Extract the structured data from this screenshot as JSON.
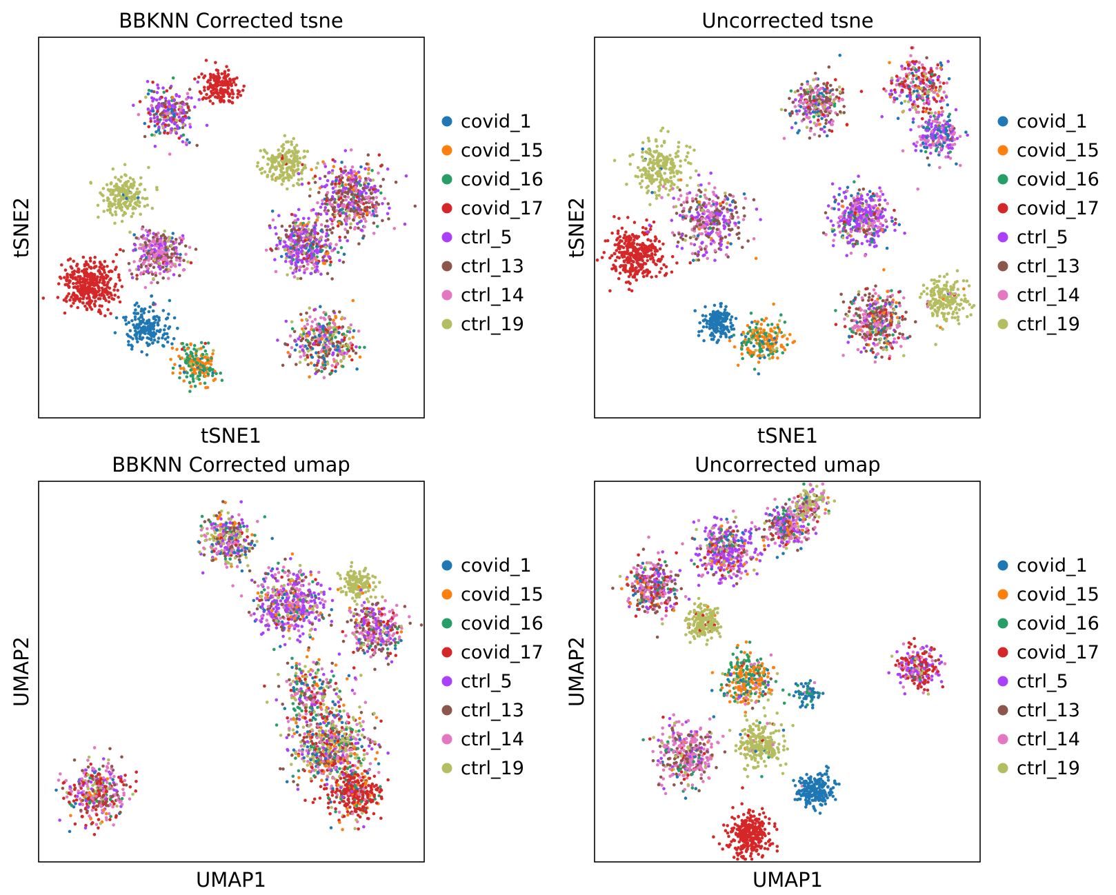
{
  "figure": {
    "background": "#ffffff"
  },
  "legend": [
    {
      "label": "covid_1",
      "color": "#1f77b4"
    },
    {
      "label": "covid_15",
      "color": "#ff7f0e"
    },
    {
      "label": "covid_16",
      "color": "#279e68"
    },
    {
      "label": "covid_17",
      "color": "#d62728"
    },
    {
      "label": "ctrl_5",
      "color": "#aa40fc"
    },
    {
      "label": "ctrl_13",
      "color": "#8c564b"
    },
    {
      "label": "ctrl_14",
      "color": "#e377c2"
    },
    {
      "label": "ctrl_19",
      "color": "#b5bd61"
    }
  ],
  "chart_data": [
    {
      "type": "scatter",
      "title": "BBKNN Corrected tsne",
      "xlabel": "tSNE1",
      "ylabel": "tSNE2",
      "xlim": [
        0,
        100
      ],
      "ylim": [
        0,
        100
      ],
      "ticks": false,
      "grid": false,
      "legend_position": "right",
      "note": "Clusters approximate the point clouds; x/y are centers in normalized embedding units, r is spread.",
      "clusters": [
        {
          "x": 13,
          "y": 35,
          "r": 6,
          "n": 380,
          "mix": [
            0,
            0,
            0,
            100,
            0,
            0,
            0,
            0
          ]
        },
        {
          "x": 22,
          "y": 58,
          "r": 5,
          "n": 200,
          "mix": [
            2,
            0,
            0,
            0,
            0,
            0,
            0,
            98
          ]
        },
        {
          "x": 34,
          "y": 80,
          "r": 6,
          "n": 260,
          "mix": [
            10,
            4,
            6,
            8,
            34,
            16,
            16,
            6
          ]
        },
        {
          "x": 47,
          "y": 87,
          "r": 4,
          "n": 170,
          "mix": [
            0,
            0,
            0,
            100,
            0,
            0,
            0,
            0
          ]
        },
        {
          "x": 31,
          "y": 43,
          "r": 6,
          "n": 330,
          "mix": [
            2,
            1,
            1,
            1,
            18,
            30,
            42,
            5
          ]
        },
        {
          "x": 28,
          "y": 24,
          "r": 5,
          "n": 190,
          "mix": [
            100,
            0,
            0,
            0,
            0,
            0,
            0,
            0
          ]
        },
        {
          "x": 41,
          "y": 14,
          "r": 5,
          "n": 200,
          "mix": [
            4,
            48,
            42,
            2,
            0,
            0,
            0,
            4
          ]
        },
        {
          "x": 64,
          "y": 67,
          "r": 5,
          "n": 210,
          "mix": [
            0,
            2,
            0,
            2,
            0,
            0,
            0,
            96
          ]
        },
        {
          "x": 81,
          "y": 58,
          "r": 8,
          "n": 450,
          "mix": [
            6,
            5,
            4,
            8,
            24,
            28,
            20,
            5
          ]
        },
        {
          "x": 69,
          "y": 45,
          "r": 7,
          "n": 430,
          "mix": [
            10,
            4,
            6,
            6,
            38,
            14,
            16,
            6
          ]
        },
        {
          "x": 74,
          "y": 20,
          "r": 7,
          "n": 380,
          "mix": [
            10,
            10,
            10,
            8,
            10,
            18,
            16,
            18
          ]
        }
      ]
    },
    {
      "type": "scatter",
      "title": "Uncorrected tsne",
      "xlabel": "tSNE1",
      "ylabel": "tSNE2",
      "xlim": [
        0,
        100
      ],
      "ylim": [
        0,
        100
      ],
      "ticks": false,
      "grid": false,
      "legend_position": "right",
      "note": "Clusters approximate the point clouds; x/y are centers in normalized embedding units, r is spread.",
      "clusters": [
        {
          "x": 11,
          "y": 43,
          "r": 6,
          "n": 340,
          "mix": [
            0,
            0,
            0,
            100,
            0,
            0,
            0,
            0
          ]
        },
        {
          "x": 17,
          "y": 66,
          "r": 6,
          "n": 220,
          "mix": [
            2,
            0,
            0,
            0,
            0,
            0,
            0,
            98
          ]
        },
        {
          "x": 30,
          "y": 52,
          "r": 8,
          "n": 360,
          "mix": [
            4,
            2,
            2,
            2,
            22,
            30,
            34,
            4
          ]
        },
        {
          "x": 32,
          "y": 25,
          "r": 4,
          "n": 170,
          "mix": [
            100,
            0,
            0,
            0,
            0,
            0,
            0,
            0
          ]
        },
        {
          "x": 44,
          "y": 20,
          "r": 5,
          "n": 220,
          "mix": [
            6,
            50,
            34,
            2,
            0,
            0,
            0,
            8
          ]
        },
        {
          "x": 58,
          "y": 82,
          "r": 6,
          "n": 280,
          "mix": [
            12,
            2,
            4,
            4,
            10,
            36,
            22,
            10
          ]
        },
        {
          "x": 69,
          "y": 52,
          "r": 7,
          "n": 380,
          "mix": [
            8,
            2,
            4,
            4,
            44,
            14,
            20,
            4
          ]
        },
        {
          "x": 73,
          "y": 25,
          "r": 7,
          "n": 380,
          "mix": [
            6,
            8,
            6,
            10,
            10,
            30,
            24,
            6
          ]
        },
        {
          "x": 84,
          "y": 87,
          "r": 6,
          "n": 270,
          "mix": [
            6,
            6,
            4,
            30,
            16,
            6,
            22,
            10
          ]
        },
        {
          "x": 89,
          "y": 74,
          "r": 5,
          "n": 230,
          "mix": [
            24,
            2,
            6,
            0,
            36,
            6,
            26,
            0
          ]
        },
        {
          "x": 91,
          "y": 31,
          "r": 5,
          "n": 200,
          "mix": [
            2,
            1,
            0,
            1,
            0,
            0,
            2,
            94
          ]
        }
      ]
    },
    {
      "type": "scatter",
      "title": "BBKNN Corrected umap",
      "xlabel": "UMAP1",
      "ylabel": "UMAP2",
      "xlim": [
        0,
        100
      ],
      "ylim": [
        0,
        100
      ],
      "ticks": false,
      "grid": false,
      "legend_position": "right",
      "note": "Clusters approximate the point clouds; x/y are centers in normalized embedding units, r is spread.",
      "clusters": [
        {
          "x": 15,
          "y": 18,
          "r": 7,
          "n": 360,
          "mix": [
            4,
            4,
            6,
            26,
            10,
            16,
            26,
            8
          ]
        },
        {
          "x": 49,
          "y": 85,
          "r": 6,
          "n": 330,
          "mix": [
            8,
            6,
            6,
            4,
            20,
            16,
            20,
            20
          ]
        },
        {
          "x": 65,
          "y": 68,
          "r": 8,
          "n": 480,
          "mix": [
            6,
            4,
            6,
            4,
            36,
            14,
            24,
            6
          ]
        },
        {
          "x": 83,
          "y": 73,
          "r": 4,
          "n": 150,
          "mix": [
            0,
            2,
            0,
            2,
            0,
            0,
            0,
            96
          ]
        },
        {
          "x": 87,
          "y": 61,
          "r": 6,
          "n": 300,
          "mix": [
            4,
            4,
            4,
            10,
            22,
            24,
            26,
            6
          ]
        },
        {
          "x": 71,
          "y": 45,
          "r": 8,
          "n": 260,
          "mix": [
            10,
            12,
            12,
            8,
            12,
            10,
            20,
            16
          ]
        },
        {
          "x": 76,
          "y": 30,
          "r": 9,
          "n": 620,
          "mix": [
            10,
            10,
            12,
            16,
            8,
            10,
            14,
            20
          ]
        },
        {
          "x": 82,
          "y": 18,
          "r": 6,
          "n": 330,
          "mix": [
            4,
            8,
            6,
            64,
            4,
            4,
            6,
            4
          ]
        }
      ]
    },
    {
      "type": "scatter",
      "title": "Uncorrected umap",
      "xlabel": "UMAP1",
      "ylabel": "UMAP2",
      "xlim": [
        0,
        100
      ],
      "ylim": [
        0,
        100
      ],
      "ticks": false,
      "grid": false,
      "legend_position": "right",
      "note": "Clusters approximate the point clouds; x/y are centers in normalized embedding units, r is spread.",
      "clusters": [
        {
          "x": 15,
          "y": 72,
          "r": 6,
          "n": 330,
          "mix": [
            4,
            6,
            4,
            12,
            16,
            26,
            28,
            4
          ]
        },
        {
          "x": 34,
          "y": 82,
          "r": 7,
          "n": 380,
          "mix": [
            6,
            6,
            4,
            8,
            44,
            10,
            18,
            4
          ]
        },
        {
          "x": 50,
          "y": 88,
          "r": 5,
          "n": 280,
          "mix": [
            10,
            4,
            4,
            4,
            18,
            24,
            28,
            8
          ]
        },
        {
          "x": 56,
          "y": 94,
          "r": 4,
          "n": 150,
          "mix": [
            6,
            4,
            2,
            4,
            6,
            10,
            28,
            40
          ]
        },
        {
          "x": 28,
          "y": 63,
          "r": 4,
          "n": 200,
          "mix": [
            0,
            2,
            0,
            2,
            0,
            0,
            0,
            96
          ]
        },
        {
          "x": 40,
          "y": 48,
          "r": 6,
          "n": 300,
          "mix": [
            6,
            44,
            30,
            2,
            2,
            2,
            8,
            6
          ]
        },
        {
          "x": 55,
          "y": 44,
          "r": 3,
          "n": 60,
          "mix": [
            60,
            0,
            30,
            0,
            0,
            0,
            10,
            0
          ]
        },
        {
          "x": 84,
          "y": 51,
          "r": 5,
          "n": 240,
          "mix": [
            2,
            0,
            2,
            36,
            28,
            2,
            20,
            10
          ]
        },
        {
          "x": 24,
          "y": 28,
          "r": 7,
          "n": 360,
          "mix": [
            4,
            4,
            6,
            4,
            10,
            22,
            44,
            6
          ]
        },
        {
          "x": 43,
          "y": 31,
          "r": 5,
          "n": 240,
          "mix": [
            2,
            1,
            1,
            1,
            0,
            0,
            4,
            91
          ]
        },
        {
          "x": 57,
          "y": 19,
          "r": 4,
          "n": 230,
          "mix": [
            98,
            0,
            0,
            0,
            0,
            0,
            2,
            0
          ]
        },
        {
          "x": 40,
          "y": 7,
          "r": 5,
          "n": 320,
          "mix": [
            0,
            0,
            0,
            100,
            0,
            0,
            0,
            0
          ]
        }
      ]
    }
  ]
}
